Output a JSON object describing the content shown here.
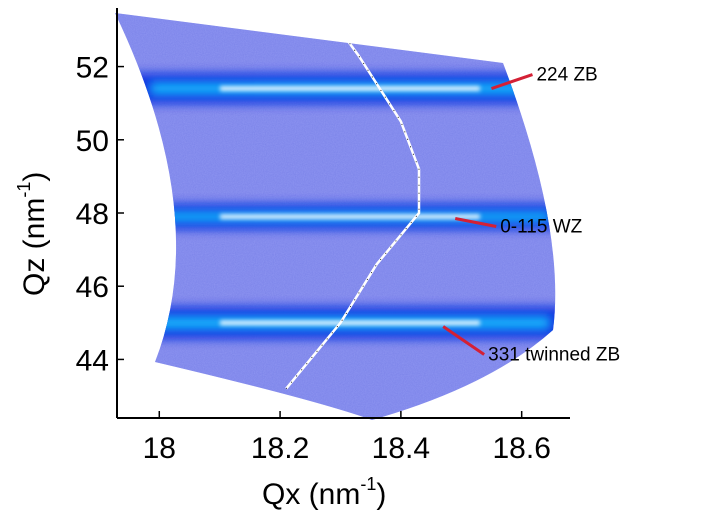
{
  "chart_data": {
    "type": "heatmap",
    "title": "",
    "xlabel": "Qx (nm",
    "xlabel_sup": "-1",
    "xlabel_close": ")",
    "ylabel": "Qz (nm",
    "ylabel_sup": "-1",
    "ylabel_close": ")",
    "xlim": [
      17.93,
      18.68
    ],
    "ylim": [
      42.4,
      53.6
    ],
    "x_ticks": [
      {
        "value": 18.0,
        "label": "18"
      },
      {
        "value": 18.2,
        "label": "18.2"
      },
      {
        "value": 18.4,
        "label": "18.4"
      },
      {
        "value": 18.6,
        "label": "18.6"
      }
    ],
    "y_ticks": [
      {
        "value": 44,
        "label": "44"
      },
      {
        "value": 46,
        "label": "46"
      },
      {
        "value": 48,
        "label": "48"
      },
      {
        "value": 50,
        "label": "50"
      },
      {
        "value": 52,
        "label": "52"
      }
    ],
    "grid": false,
    "colormap": "jet",
    "bands": [
      {
        "qz": 51.4,
        "intensity": 0.9
      },
      {
        "qz": 47.9,
        "intensity": 0.75
      },
      {
        "qz": 45.0,
        "intensity": 0.95
      }
    ],
    "annotations": [
      {
        "text": "224 ZB",
        "x": 18.55,
        "y": 51.4
      },
      {
        "text": "0-115 WZ",
        "x": 18.49,
        "y": 47.85
      },
      {
        "text": "331 twinned ZB",
        "x": 18.47,
        "y": 44.9
      }
    ],
    "overlay_curve": [
      {
        "x": 18.21,
        "y": 43.2
      },
      {
        "x": 18.3,
        "y": 45.0
      },
      {
        "x": 18.36,
        "y": 46.6
      },
      {
        "x": 18.43,
        "y": 48.0
      },
      {
        "x": 18.43,
        "y": 49.2
      },
      {
        "x": 18.4,
        "y": 50.5
      },
      {
        "x": 18.33,
        "y": 52.3
      },
      {
        "x": 18.29,
        "y": 53.2
      }
    ],
    "colors": {
      "background_wash": "#7a82e8",
      "band_core": "#ffffff",
      "band_mid": "#19c6ff",
      "band_outer": "#0a32e0",
      "annotation_line": "#d42035",
      "overlay_curve": "#ffffff"
    }
  }
}
